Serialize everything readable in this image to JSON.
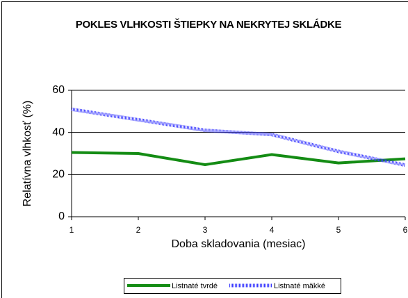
{
  "chart_data": {
    "type": "line",
    "title": "POKLES VLHKOSTI ŠTIEPKY NA NEKRYTEJ SKLÁDKE",
    "x_label": "Doba skladovania (mesiac)",
    "y_label": "Relatívna vlhkosť (%)",
    "x": [
      1,
      2,
      3,
      4,
      5,
      6
    ],
    "xlim": [
      1,
      6
    ],
    "xticks": [
      1,
      2,
      3,
      4,
      5,
      6
    ],
    "ylim": [
      0,
      60
    ],
    "yticks": [
      0,
      20,
      40,
      60
    ],
    "grid": true,
    "legend": "bottom",
    "series": [
      {
        "name": "Listnaté tvrdé",
        "color": "#148c14",
        "values": [
          30.5,
          30,
          24.7,
          29.5,
          25.5,
          27.5
        ]
      },
      {
        "name": "Listnaté mäkké",
        "color": "#3a3aff",
        "values": [
          51,
          46,
          41,
          39,
          31,
          24.5
        ]
      }
    ]
  }
}
